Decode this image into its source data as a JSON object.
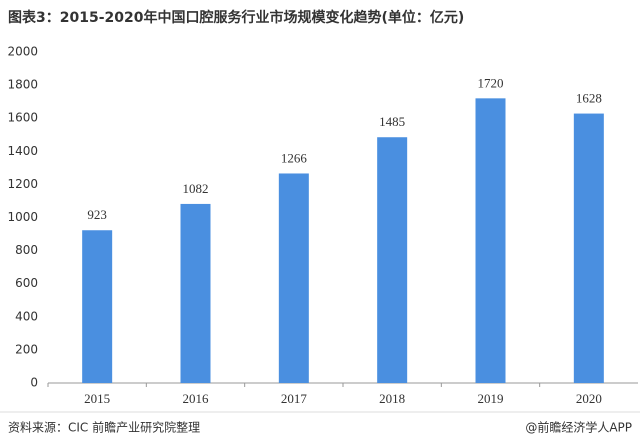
{
  "chart_data": {
    "type": "bar",
    "title": "图表3：2015-2020年中国口腔服务行业市场规模变化趋势(单位：亿元)",
    "categories": [
      "2015",
      "2016",
      "2017",
      "2018",
      "2019",
      "2020"
    ],
    "values": [
      923,
      1082,
      1266,
      1485,
      1720,
      1628
    ],
    "color": "#4a8fe0",
    "ylim": [
      0,
      2000
    ],
    "yticks": [
      0,
      200,
      400,
      600,
      800,
      1000,
      1200,
      1400,
      1600,
      1800,
      2000
    ],
    "grid": false,
    "source": "资料来源：CIC 前瞻产业研究院整理",
    "credit": "@前瞻经济学人APP"
  }
}
